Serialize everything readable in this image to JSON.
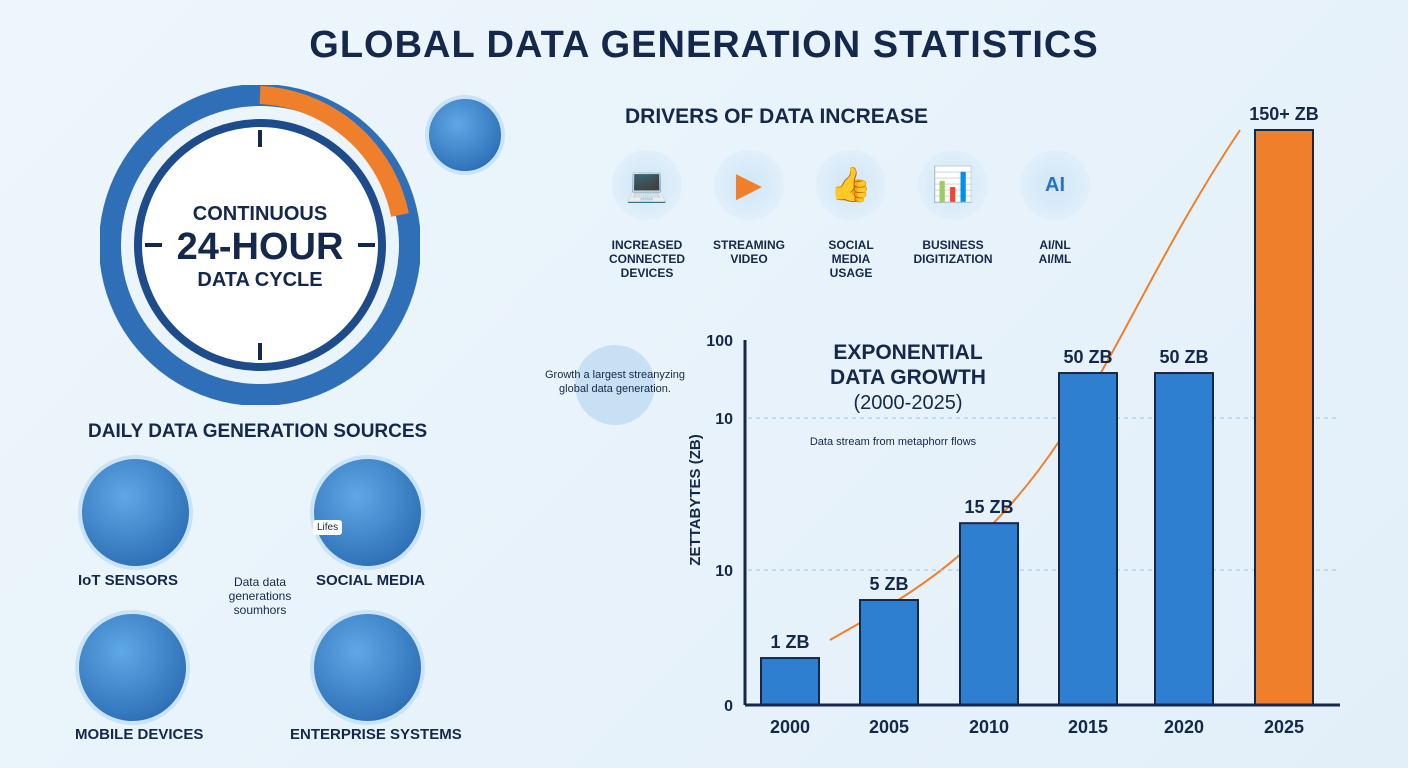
{
  "title": "GLOBAL DATA GENERATION STATISTICS",
  "clock": {
    "line1": "CONTINUOUS",
    "line2": "24-HOUR",
    "line3": "DATA CYCLE"
  },
  "drivers": {
    "heading": "DRIVERS OF DATA INCREASE",
    "items": [
      {
        "label": "INCREASED CONNECTED DEVICES",
        "icon": "devices-icon",
        "glyph": "💻"
      },
      {
        "label": "STREAMING VIDEO",
        "icon": "video-play-icon",
        "glyph": "▶"
      },
      {
        "label": "SOCIAL MEDIA USAGE",
        "icon": "thumbs-up-icon",
        "glyph": "👍"
      },
      {
        "label": "BUSINESS DIGITIZATION",
        "icon": "presentation-chart-icon",
        "glyph": "📊"
      },
      {
        "label": "AI/NL AI/ML",
        "icon": "ai-brain-icon",
        "glyph": "AI"
      }
    ]
  },
  "sources": {
    "heading": "DAILY DATA GENERATION SOURCES",
    "center_note": "Data data generations soumhors",
    "items": [
      {
        "label": "IoT SENSORS",
        "icon": "thermometer-icon",
        "glyph": "🌡"
      },
      {
        "label": "SOCIAL MEDIA",
        "icon": "social-feed-icon",
        "glyph": "👍",
        "badge": "Lifes"
      },
      {
        "label": "MOBILE DEVICES",
        "icon": "smartphone-icon",
        "glyph": "📱"
      },
      {
        "label": "ENTERPRISE SYSTEMS",
        "icon": "server-icon",
        "glyph": "🗄"
      }
    ]
  },
  "bubble_note": "Growth a largest streanyzing global data generation.",
  "stream_note": "Data stream from metaphorr flows",
  "colors": {
    "navy": "#14284b",
    "blue": "#2f7fd0",
    "orange": "#f07f2c"
  },
  "chart_data": {
    "type": "bar",
    "title": "EXPONENTIAL DATA GROWTH",
    "subtitle": "(2000-2025)",
    "ylabel": "ZETTABYTES (ZB)",
    "y_tick_labels": [
      "100",
      "10",
      "10",
      "0"
    ],
    "categories": [
      "2000",
      "2005",
      "2010",
      "2015",
      "2020",
      "2025"
    ],
    "values": [
      1,
      5,
      15,
      50,
      50,
      150
    ],
    "data_labels": [
      "1 ZB",
      "5 ZB",
      "15 ZB",
      "50 ZB",
      "50 ZB",
      "150+ ZB"
    ],
    "bar_colors": [
      "#2f7fd0",
      "#2f7fd0",
      "#2f7fd0",
      "#2f7fd0",
      "#2f7fd0",
      "#f07f2c"
    ],
    "grid": true
  }
}
